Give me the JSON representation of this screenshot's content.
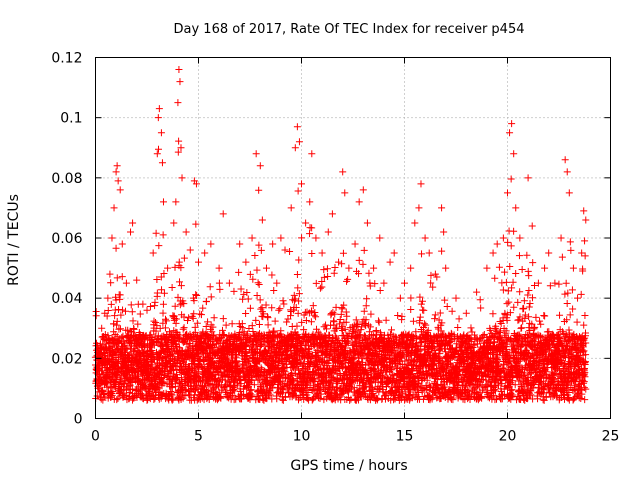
{
  "chart_data": {
    "type": "scatter",
    "title": "Day 168 of 2017, Rate Of TEC Index for receiver p454",
    "xlabel": "GPS time / hours",
    "ylabel": "ROTI / TECUs",
    "xlim": [
      0,
      25
    ],
    "ylim": [
      0,
      0.12
    ],
    "x_ticks": [
      0,
      5,
      10,
      15,
      20,
      25
    ],
    "x_tick_labels": [
      "0",
      "5",
      "10",
      "15",
      "20",
      "25"
    ],
    "y_ticks": [
      0,
      0.02,
      0.04,
      0.06,
      0.08,
      0.1,
      0.12
    ],
    "y_tick_labels": [
      "0",
      "0.02",
      "0.04",
      "0.06",
      "0.08",
      "0.1",
      "0.12"
    ],
    "grid": true,
    "marker": "+",
    "color": "#ff0000",
    "series": [
      {
        "name": "ROTI",
        "points": [
          [
            0.05,
            0.025
          ],
          [
            0.1,
            0.022
          ],
          [
            0.2,
            0.018
          ],
          [
            0.3,
            0.03
          ],
          [
            0.45,
            0.035
          ],
          [
            0.6,
            0.04
          ],
          [
            0.7,
            0.048
          ],
          [
            0.8,
            0.06
          ],
          [
            0.9,
            0.07
          ],
          [
            1.0,
            0.082
          ],
          [
            1.05,
            0.084
          ],
          [
            1.1,
            0.079
          ],
          [
            1.2,
            0.076
          ],
          [
            1.3,
            0.058
          ],
          [
            1.5,
            0.045
          ],
          [
            1.7,
            0.062
          ],
          [
            1.8,
            0.065
          ],
          [
            2.0,
            0.046
          ],
          [
            2.3,
            0.038
          ],
          [
            2.5,
            0.036
          ],
          [
            2.8,
            0.055
          ],
          [
            3.0,
            0.088
          ],
          [
            3.05,
            0.1
          ],
          [
            3.1,
            0.103
          ],
          [
            3.2,
            0.095
          ],
          [
            3.25,
            0.085
          ],
          [
            3.3,
            0.072
          ],
          [
            3.5,
            0.05
          ],
          [
            3.8,
            0.065
          ],
          [
            3.9,
            0.072
          ],
          [
            4.0,
            0.105
          ],
          [
            4.05,
            0.116
          ],
          [
            4.1,
            0.112
          ],
          [
            4.15,
            0.09
          ],
          [
            4.2,
            0.08
          ],
          [
            4.4,
            0.062
          ],
          [
            4.6,
            0.056
          ],
          [
            4.8,
            0.079
          ],
          [
            4.9,
            0.078
          ],
          [
            5.0,
            0.052
          ],
          [
            5.3,
            0.055
          ],
          [
            5.6,
            0.058
          ],
          [
            6.0,
            0.05
          ],
          [
            6.2,
            0.068
          ],
          [
            6.5,
            0.045
          ],
          [
            7.0,
            0.058
          ],
          [
            7.3,
            0.052
          ],
          [
            7.6,
            0.06
          ],
          [
            7.8,
            0.088
          ],
          [
            8.0,
            0.084
          ],
          [
            8.1,
            0.066
          ],
          [
            8.3,
            0.05
          ],
          [
            8.6,
            0.058
          ],
          [
            8.8,
            0.045
          ],
          [
            9.0,
            0.06
          ],
          [
            9.2,
            0.056
          ],
          [
            9.5,
            0.07
          ],
          [
            9.7,
            0.09
          ],
          [
            9.8,
            0.097
          ],
          [
            9.9,
            0.092
          ],
          [
            10.0,
            0.078
          ],
          [
            10.2,
            0.065
          ],
          [
            10.4,
            0.072
          ],
          [
            10.5,
            0.088
          ],
          [
            10.7,
            0.06
          ],
          [
            11.0,
            0.055
          ],
          [
            11.3,
            0.062
          ],
          [
            11.5,
            0.068
          ],
          [
            11.8,
            0.052
          ],
          [
            12.0,
            0.082
          ],
          [
            12.1,
            0.075
          ],
          [
            12.3,
            0.05
          ],
          [
            12.6,
            0.058
          ],
          [
            12.8,
            0.072
          ],
          [
            13.0,
            0.076
          ],
          [
            13.2,
            0.065
          ],
          [
            13.5,
            0.05
          ],
          [
            13.8,
            0.06
          ],
          [
            14.0,
            0.045
          ],
          [
            14.3,
            0.052
          ],
          [
            14.5,
            0.055
          ],
          [
            14.8,
            0.04
          ],
          [
            15.0,
            0.045
          ],
          [
            15.3,
            0.05
          ],
          [
            15.5,
            0.065
          ],
          [
            15.7,
            0.07
          ],
          [
            15.8,
            0.078
          ],
          [
            16.0,
            0.06
          ],
          [
            16.2,
            0.055
          ],
          [
            16.5,
            0.048
          ],
          [
            16.8,
            0.07
          ],
          [
            16.9,
            0.062
          ],
          [
            17.0,
            0.05
          ],
          [
            17.5,
            0.04
          ],
          [
            18.0,
            0.035
          ],
          [
            18.5,
            0.042
          ],
          [
            19.0,
            0.05
          ],
          [
            19.3,
            0.055
          ],
          [
            19.5,
            0.058
          ],
          [
            19.8,
            0.06
          ],
          [
            20.0,
            0.075
          ],
          [
            20.1,
            0.095
          ],
          [
            20.2,
            0.098
          ],
          [
            20.3,
            0.088
          ],
          [
            20.4,
            0.07
          ],
          [
            20.6,
            0.06
          ],
          [
            21.0,
            0.08
          ],
          [
            21.2,
            0.064
          ],
          [
            21.5,
            0.045
          ],
          [
            21.8,
            0.05
          ],
          [
            22.0,
            0.055
          ],
          [
            22.3,
            0.045
          ],
          [
            22.6,
            0.06
          ],
          [
            22.8,
            0.086
          ],
          [
            22.9,
            0.082
          ],
          [
            23.0,
            0.075
          ],
          [
            23.2,
            0.05
          ],
          [
            23.4,
            0.04
          ],
          [
            23.6,
            0.055
          ],
          [
            23.7,
            0.069
          ],
          [
            23.8,
            0.066
          ]
        ]
      }
    ],
    "series_note": "Each point shown as a red '+' marker; dense baseline band of values between about 0.005 and 0.03 across the whole day."
  }
}
